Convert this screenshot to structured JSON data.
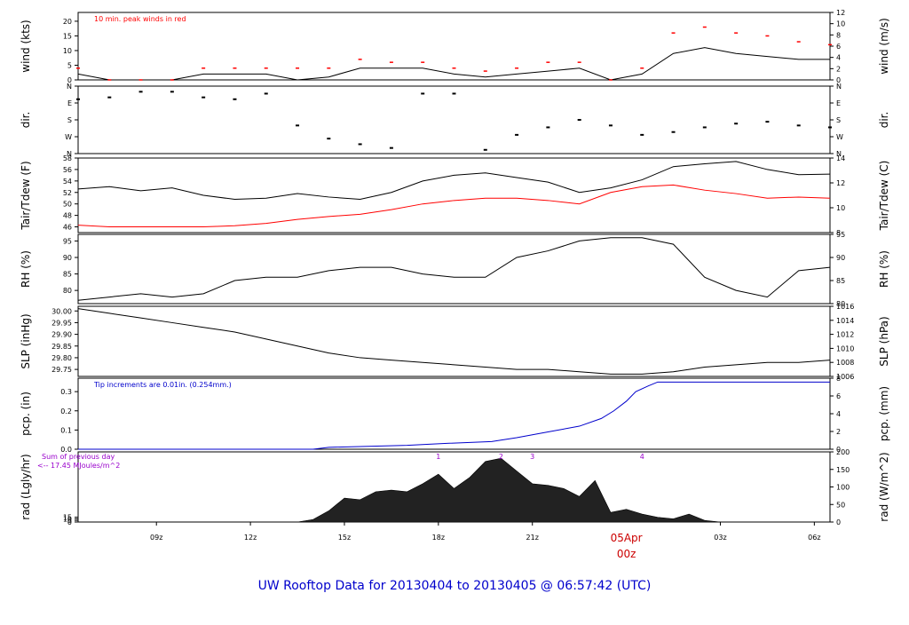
{
  "footer": "UW Rooftop Data for 20130404  to  20130405 @ 06:57:42  (UTC)",
  "date_marker": {
    "date": "05Apr",
    "hour": "00z"
  },
  "colors": {
    "date_marker": "#cc0000",
    "footer": "#0000cc",
    "peak": "#ff0000",
    "dew": "#ff0000",
    "rain": "#0000cc",
    "sun_note": "#9900cc"
  },
  "chart_data": [
    {
      "id": "wind",
      "type": "line",
      "ylabel_left": "wind (kts)",
      "ylabel_right": "wind (m/s)",
      "left_ticks": [
        0,
        5,
        10,
        15,
        20
      ],
      "right_ticks": [
        0,
        2,
        4,
        6,
        8,
        10,
        12
      ],
      "ylim": [
        0,
        23
      ],
      "annotation": "10 min. peak winds in red",
      "series": [
        {
          "x": [
            6.5,
            7.5,
            8.5,
            9.5,
            10.5,
            11.5,
            12.5,
            13.5,
            14.5,
            15.5,
            16.5,
            17.5,
            18.5,
            19.5,
            20.5,
            21.5,
            22.5,
            23.5,
            24.5,
            25.5,
            26.5,
            27.5,
            28.5,
            29.5,
            30.5
          ],
          "y": [
            2,
            0,
            0,
            0,
            2,
            2,
            2,
            0,
            1,
            4,
            4,
            4,
            2,
            1,
            2,
            3,
            4,
            0,
            2,
            9,
            11,
            9,
            8,
            7,
            7
          ]
        },
        {
          "name": "10 min. peak winds",
          "x": [
            6.5,
            7.5,
            8.5,
            9.5,
            10.5,
            11.5,
            12.5,
            13.5,
            14.5,
            15.5,
            16.5,
            17.5,
            18.5,
            19.5,
            20.5,
            21.5,
            22.5,
            23.5,
            24.5,
            25.5,
            26.5,
            27.5,
            28.5,
            29.5,
            30.5
          ],
          "y": [
            4,
            0,
            0,
            0,
            4,
            4,
            4,
            4,
            4,
            7,
            6,
            6,
            4,
            3,
            4,
            6,
            6,
            0,
            4,
            16,
            18,
            16,
            15,
            13,
            12
          ]
        }
      ]
    },
    {
      "id": "dir",
      "type": "scatter",
      "ylabel_left": "dir.",
      "ylabel_right": "dir.",
      "left_ticks": [
        "N",
        "W",
        "S",
        "E",
        "N"
      ],
      "right_ticks": [
        "N",
        "W",
        "S",
        "E",
        "N"
      ],
      "ylim": [
        0,
        360
      ],
      "series": [
        {
          "x": [
            6.5,
            7.5,
            8.5,
            9.5,
            10.5,
            11.5,
            12.5,
            13.5,
            14.5,
            15.5,
            16.5,
            17.5,
            18.5,
            19.5,
            20.5,
            21.5,
            22.5,
            23.5,
            24.5,
            25.5,
            26.5,
            27.5,
            28.5,
            29.5,
            30.5
          ],
          "y": [
            290,
            300,
            330,
            330,
            300,
            290,
            320,
            150,
            80,
            50,
            30,
            320,
            320,
            20,
            100,
            140,
            180,
            150,
            100,
            115,
            140,
            160,
            170,
            150,
            140
          ]
        }
      ]
    },
    {
      "id": "temp",
      "type": "line",
      "ylabel_left": "Tair/Tdew (F)",
      "ylabel_right": "Tair/Tdew (C)",
      "left_ticks": [
        46,
        48,
        50,
        52,
        54,
        56,
        58
      ],
      "right_ticks": [
        8,
        10,
        12,
        14
      ],
      "ylim": [
        45,
        58
      ],
      "series": [
        {
          "name": "Tair",
          "x": [
            6.5,
            7.5,
            8.5,
            9.5,
            10.5,
            11.5,
            12.5,
            13.5,
            14.5,
            15.5,
            16.5,
            17.5,
            18.5,
            19.5,
            20.5,
            21.5,
            22.5,
            23.5,
            24.5,
            25.5,
            26.5,
            27.5,
            28.5,
            29.5,
            30.5
          ],
          "y": [
            52.6,
            53.0,
            52.3,
            52.8,
            51.5,
            50.8,
            51.0,
            51.8,
            51.2,
            50.8,
            52.0,
            54.0,
            55.0,
            55.4,
            54.6,
            53.8,
            52.0,
            52.8,
            54.2,
            56.5,
            57.0,
            57.4,
            56.0,
            55.1,
            55.2
          ]
        },
        {
          "name": "Tdew",
          "x": [
            6.5,
            7.5,
            8.5,
            9.5,
            10.5,
            11.5,
            12.5,
            13.5,
            14.5,
            15.5,
            16.5,
            17.5,
            18.5,
            19.5,
            20.5,
            21.5,
            22.5,
            23.5,
            24.5,
            25.5,
            26.5,
            27.5,
            28.5,
            29.5,
            30.5
          ],
          "y": [
            46.3,
            46.0,
            46.0,
            46.0,
            46.0,
            46.2,
            46.6,
            47.3,
            47.8,
            48.2,
            49.0,
            50.0,
            50.6,
            51.0,
            51.0,
            50.6,
            50.0,
            52.0,
            53.0,
            53.3,
            52.4,
            51.8,
            51.0,
            51.2,
            51.0
          ]
        }
      ]
    },
    {
      "id": "rh",
      "type": "line",
      "ylabel_left": "RH (%)",
      "ylabel_right": "RH (%)",
      "left_ticks": [
        80,
        85,
        90,
        95
      ],
      "right_ticks": [
        80,
        85,
        90,
        95
      ],
      "ylim": [
        76,
        97
      ],
      "series": [
        {
          "x": [
            6.5,
            7.5,
            8.5,
            9.5,
            10.5,
            11.5,
            12.5,
            13.5,
            14.5,
            15.5,
            16.5,
            17.5,
            18.5,
            19.5,
            20.5,
            21.5,
            22.5,
            23.5,
            24.5,
            25.5,
            26.5,
            27.5,
            28.5,
            29.5,
            30.5
          ],
          "y": [
            77,
            78,
            79,
            78,
            79,
            83,
            84,
            84,
            86,
            87,
            87,
            85,
            84,
            84,
            90,
            92,
            95,
            96,
            96,
            94,
            84,
            80,
            78,
            86,
            87
          ]
        }
      ]
    },
    {
      "id": "slp",
      "type": "line",
      "ylabel_left": "SLP (inHg)",
      "ylabel_right": "SLP (hPa)",
      "left_ticks": [
        "29.75",
        "29.80",
        "29.85",
        "29.90",
        "29.95",
        "30.00"
      ],
      "right_ticks": [
        1006,
        1008,
        1010,
        1012,
        1014,
        1016
      ],
      "ylim": [
        29.72,
        30.02
      ],
      "series": [
        {
          "x": [
            6.5,
            7.5,
            8.5,
            9.5,
            10.5,
            11.5,
            12.5,
            13.5,
            14.5,
            15.5,
            16.5,
            17.5,
            18.5,
            19.5,
            20.5,
            21.5,
            22.5,
            23.5,
            24.5,
            25.5,
            26.5,
            27.5,
            28.5,
            29.5,
            30.5
          ],
          "y": [
            30.01,
            29.99,
            29.97,
            29.95,
            29.93,
            29.91,
            29.88,
            29.85,
            29.82,
            29.8,
            29.79,
            29.78,
            29.77,
            29.76,
            29.75,
            29.75,
            29.74,
            29.73,
            29.73,
            29.74,
            29.76,
            29.77,
            29.78,
            29.78,
            29.79
          ]
        }
      ]
    },
    {
      "id": "pcp",
      "type": "line",
      "ylabel_left": "pcp. (in)",
      "ylabel_right": "pcp. (mm)",
      "left_ticks": [
        "0.0",
        "0.1",
        "0.2",
        "0.3"
      ],
      "right_ticks": [
        0,
        2,
        4,
        6,
        8
      ],
      "ylim": [
        0,
        0.37
      ],
      "annotation": "Tip increments are 0.01in. (0.254mm.)",
      "series": [
        {
          "x": [
            6.5,
            10.0,
            14.0,
            14.5,
            17.0,
            18.2,
            19.7,
            20.5,
            21.5,
            22.5,
            23.2,
            23.6,
            24.0,
            24.3,
            24.7,
            25.0,
            26.0,
            30.5
          ],
          "y": [
            0.0,
            0.0,
            0.0,
            0.01,
            0.02,
            0.03,
            0.04,
            0.06,
            0.09,
            0.12,
            0.16,
            0.2,
            0.25,
            0.3,
            0.33,
            0.35,
            0.35,
            0.35
          ]
        }
      ]
    },
    {
      "id": "rad",
      "type": "area",
      "ylabel_left": "rad (Lgly/hr)",
      "ylabel_right": "rad (W/m^2)",
      "left_ticks": [
        0,
        5,
        10,
        15
      ],
      "right_ticks": [
        0,
        50,
        100,
        150,
        200
      ],
      "ylim": [
        0,
        220
      ],
      "annotation_lines": [
        "Sum of previous day",
        "<-- 17.45 MJoules/m^2"
      ],
      "hour_marks": [
        {
          "x": 18,
          "label": "1"
        },
        {
          "x": 20,
          "label": "2"
        },
        {
          "x": 21,
          "label": "3"
        },
        {
          "x": 24.5,
          "label": "4"
        }
      ],
      "series": [
        {
          "x": [
            13.5,
            14,
            14.5,
            15,
            15.5,
            16,
            16.5,
            17,
            17.5,
            18,
            18.5,
            19,
            19.5,
            20,
            20.5,
            21,
            21.5,
            22,
            22.5,
            23,
            23.5,
            24,
            24.5,
            25,
            25.5,
            26,
            26.5,
            27
          ],
          "y": [
            0,
            8,
            35,
            75,
            70,
            95,
            100,
            95,
            120,
            150,
            105,
            140,
            190,
            200,
            160,
            120,
            115,
            105,
            80,
            130,
            30,
            40,
            25,
            15,
            10,
            25,
            5,
            0
          ]
        }
      ]
    }
  ],
  "x_axis": {
    "range": [
      6.5,
      30.5
    ],
    "ticks": [
      {
        "x": 9,
        "label": "09z"
      },
      {
        "x": 12,
        "label": "12z"
      },
      {
        "x": 15,
        "label": "15z"
      },
      {
        "x": 18,
        "label": "18z"
      },
      {
        "x": 21,
        "label": "21z"
      },
      {
        "x": 27,
        "label": "03z"
      },
      {
        "x": 30,
        "label": "06z"
      }
    ]
  }
}
